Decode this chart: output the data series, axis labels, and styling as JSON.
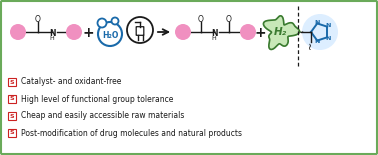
{
  "bg_color": "#ffffff",
  "border_color": "#6aaa5a",
  "pink_color": "#f090c0",
  "blue_color": "#1a6aaa",
  "green_color": "#3a7a30",
  "green_fill": "#c8e8b8",
  "dark_color": "#1a1a1a",
  "red_sq_color": "#cc2222",
  "light_blue_fill": "#ddeeff",
  "bullet_items": [
    "Catalyst- and oxidant-free",
    "High level of functional group tolerance",
    "Cheap and easily accessible raw materials",
    "Post-modification of drug molecules and natural products"
  ],
  "h2_label": "H₂",
  "h2o_label": "H₂O"
}
